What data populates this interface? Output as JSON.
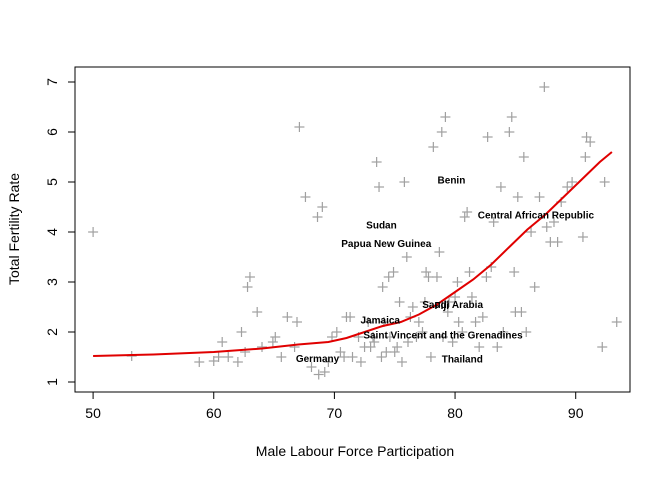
{
  "chart_data": {
    "type": "scatter",
    "xlabel": "Male Labour Force Participation",
    "ylabel": "Total Fertility Rate",
    "xlim": [
      48.5,
      94.5
    ],
    "ylim": [
      0.8,
      7.3
    ],
    "xticks": [
      50,
      60,
      70,
      80,
      90
    ],
    "yticks": [
      1,
      2,
      3,
      4,
      5,
      6,
      7
    ],
    "grid": false,
    "marker": "plus",
    "colors": {
      "points": "#a0a0a0",
      "smooth_line": "#e00000",
      "axis": "#000000"
    },
    "points": [
      {
        "x": 50.0,
        "y": 4.0
      },
      {
        "x": 53.2,
        "y": 1.52
      },
      {
        "x": 58.8,
        "y": 1.4
      },
      {
        "x": 60.0,
        "y": 1.42
      },
      {
        "x": 60.4,
        "y": 1.5
      },
      {
        "x": 60.7,
        "y": 1.8
      },
      {
        "x": 61.2,
        "y": 1.5
      },
      {
        "x": 62.0,
        "y": 1.4
      },
      {
        "x": 62.3,
        "y": 2.0
      },
      {
        "x": 62.6,
        "y": 1.6
      },
      {
        "x": 62.8,
        "y": 2.9
      },
      {
        "x": 63.0,
        "y": 3.1
      },
      {
        "x": 63.6,
        "y": 2.4
      },
      {
        "x": 64.0,
        "y": 1.7
      },
      {
        "x": 64.9,
        "y": 1.8
      },
      {
        "x": 65.1,
        "y": 1.9
      },
      {
        "x": 65.6,
        "y": 1.5
      },
      {
        "x": 66.1,
        "y": 2.3
      },
      {
        "x": 66.7,
        "y": 1.7
      },
      {
        "x": 66.9,
        "y": 2.2
      },
      {
        "x": 67.1,
        "y": 6.1
      },
      {
        "x": 67.6,
        "y": 4.7
      },
      {
        "x": 68.1,
        "y": 1.3
      },
      {
        "x": 68.6,
        "y": 4.3
      },
      {
        "x": 68.7,
        "y": 1.15
      },
      {
        "x": 69.0,
        "y": 4.5
      },
      {
        "x": 69.2,
        "y": 1.2
      },
      {
        "x": 69.5,
        "y": 1.4
      },
      {
        "x": 69.8,
        "y": 1.9
      },
      {
        "x": 70.2,
        "y": 2.0
      },
      {
        "x": 70.5,
        "y": 1.6
      },
      {
        "x": 70.8,
        "y": 1.5
      },
      {
        "x": 71.0,
        "y": 2.3
      },
      {
        "x": 71.3,
        "y": 2.3
      },
      {
        "x": 71.5,
        "y": 1.5
      },
      {
        "x": 72.0,
        "y": 1.9
      },
      {
        "x": 72.2,
        "y": 1.4
      },
      {
        "x": 72.5,
        "y": 1.7
      },
      {
        "x": 72.8,
        "y": 2.2
      },
      {
        "x": 73.0,
        "y": 1.7
      },
      {
        "x": 73.2,
        "y": 1.9
      },
      {
        "x": 73.3,
        "y": 1.8
      },
      {
        "x": 73.5,
        "y": 5.4
      },
      {
        "x": 73.7,
        "y": 4.9
      },
      {
        "x": 73.9,
        "y": 1.5
      },
      {
        "x": 74.0,
        "y": 2.9
      },
      {
        "x": 74.1,
        "y": 2.2
      },
      {
        "x": 74.3,
        "y": 1.6
      },
      {
        "x": 74.5,
        "y": 3.1
      },
      {
        "x": 74.6,
        "y": 1.9
      },
      {
        "x": 74.9,
        "y": 3.2
      },
      {
        "x": 75.0,
        "y": 1.6
      },
      {
        "x": 75.2,
        "y": 1.7
      },
      {
        "x": 75.4,
        "y": 2.6
      },
      {
        "x": 75.6,
        "y": 1.4
      },
      {
        "x": 75.8,
        "y": 5.0
      },
      {
        "x": 76.0,
        "y": 3.5
      },
      {
        "x": 76.1,
        "y": 1.8
      },
      {
        "x": 76.3,
        "y": 2.3
      },
      {
        "x": 76.5,
        "y": 2.5
      },
      {
        "x": 76.8,
        "y": 1.9
      },
      {
        "x": 77.0,
        "y": 2.2
      },
      {
        "x": 77.3,
        "y": 2.0
      },
      {
        "x": 77.5,
        "y": 2.6
      },
      {
        "x": 77.6,
        "y": 3.2
      },
      {
        "x": 77.8,
        "y": 3.1
      },
      {
        "x": 78.0,
        "y": 1.5
      },
      {
        "x": 78.2,
        "y": 5.7
      },
      {
        "x": 78.5,
        "y": 3.1
      },
      {
        "x": 78.7,
        "y": 3.6
      },
      {
        "x": 78.9,
        "y": 6.0
      },
      {
        "x": 79.0,
        "y": 1.9
      },
      {
        "x": 79.2,
        "y": 6.3
      },
      {
        "x": 79.4,
        "y": 2.4
      },
      {
        "x": 79.5,
        "y": 2.6
      },
      {
        "x": 79.8,
        "y": 1.8
      },
      {
        "x": 80.0,
        "y": 2.7
      },
      {
        "x": 80.2,
        "y": 3.0
      },
      {
        "x": 80.3,
        "y": 2.2
      },
      {
        "x": 80.6,
        "y": 2.0
      },
      {
        "x": 80.8,
        "y": 4.3
      },
      {
        "x": 81.0,
        "y": 4.4
      },
      {
        "x": 81.2,
        "y": 3.2
      },
      {
        "x": 81.4,
        "y": 2.7
      },
      {
        "x": 81.7,
        "y": 2.2
      },
      {
        "x": 82.0,
        "y": 1.7
      },
      {
        "x": 82.3,
        "y": 2.3
      },
      {
        "x": 82.6,
        "y": 3.1
      },
      {
        "x": 82.7,
        "y": 5.9
      },
      {
        "x": 83.0,
        "y": 3.3
      },
      {
        "x": 83.2,
        "y": 4.2
      },
      {
        "x": 83.5,
        "y": 1.7
      },
      {
        "x": 83.8,
        "y": 4.9
      },
      {
        "x": 84.0,
        "y": 2.0
      },
      {
        "x": 84.5,
        "y": 6.0
      },
      {
        "x": 84.7,
        "y": 6.3
      },
      {
        "x": 84.9,
        "y": 3.2
      },
      {
        "x": 85.0,
        "y": 2.4
      },
      {
        "x": 85.2,
        "y": 4.7
      },
      {
        "x": 85.5,
        "y": 2.4
      },
      {
        "x": 85.7,
        "y": 5.5
      },
      {
        "x": 85.9,
        "y": 2.0
      },
      {
        "x": 86.3,
        "y": 4.0
      },
      {
        "x": 86.6,
        "y": 2.9
      },
      {
        "x": 87.0,
        "y": 4.7
      },
      {
        "x": 87.4,
        "y": 6.9
      },
      {
        "x": 87.6,
        "y": 4.1
      },
      {
        "x": 87.9,
        "y": 3.8
      },
      {
        "x": 88.2,
        "y": 4.2
      },
      {
        "x": 88.5,
        "y": 3.8
      },
      {
        "x": 88.8,
        "y": 4.6
      },
      {
        "x": 89.3,
        "y": 4.9
      },
      {
        "x": 89.7,
        "y": 5.0
      },
      {
        "x": 90.6,
        "y": 3.9
      },
      {
        "x": 90.8,
        "y": 5.5
      },
      {
        "x": 90.9,
        "y": 5.9
      },
      {
        "x": 91.2,
        "y": 5.8
      },
      {
        "x": 92.2,
        "y": 1.7
      },
      {
        "x": 92.4,
        "y": 5.0
      },
      {
        "x": 93.4,
        "y": 2.2
      }
    ],
    "smooth_line": [
      {
        "x": 50.0,
        "y": 1.52
      },
      {
        "x": 55.0,
        "y": 1.55
      },
      {
        "x": 60.0,
        "y": 1.6
      },
      {
        "x": 64.0,
        "y": 1.67
      },
      {
        "x": 67.0,
        "y": 1.75
      },
      {
        "x": 69.5,
        "y": 1.8
      },
      {
        "x": 71.0,
        "y": 1.88
      },
      {
        "x": 72.5,
        "y": 2.0
      },
      {
        "x": 74.0,
        "y": 2.12
      },
      {
        "x": 75.5,
        "y": 2.2
      },
      {
        "x": 77.0,
        "y": 2.35
      },
      {
        "x": 78.5,
        "y": 2.55
      },
      {
        "x": 80.0,
        "y": 2.8
      },
      {
        "x": 81.5,
        "y": 3.05
      },
      {
        "x": 83.0,
        "y": 3.35
      },
      {
        "x": 84.5,
        "y": 3.7
      },
      {
        "x": 86.0,
        "y": 4.05
      },
      {
        "x": 87.5,
        "y": 4.35
      },
      {
        "x": 89.0,
        "y": 4.7
      },
      {
        "x": 90.5,
        "y": 5.05
      },
      {
        "x": 92.0,
        "y": 5.4
      },
      {
        "x": 93.0,
        "y": 5.6
      }
    ],
    "annotations": [
      {
        "text": "Benin",
        "x": 79.7,
        "y": 5.05
      },
      {
        "text": "Central African Republic",
        "x": 86.7,
        "y": 4.35
      },
      {
        "text": "Sudan",
        "x": 73.9,
        "y": 4.15
      },
      {
        "text": "Papua New Guinea",
        "x": 74.3,
        "y": 3.78
      },
      {
        "text": "Saudi Arabia",
        "x": 79.8,
        "y": 2.56
      },
      {
        "text": "Fiji",
        "x": 78.9,
        "y": 2.54
      },
      {
        "text": "Jamaica",
        "x": 73.8,
        "y": 2.25
      },
      {
        "text": "Saint Vincent and the Grenadines",
        "x": 79.0,
        "y": 1.95
      },
      {
        "text": "Germany",
        "x": 68.6,
        "y": 1.48
      },
      {
        "text": "Thailand",
        "x": 80.6,
        "y": 1.47
      }
    ]
  }
}
